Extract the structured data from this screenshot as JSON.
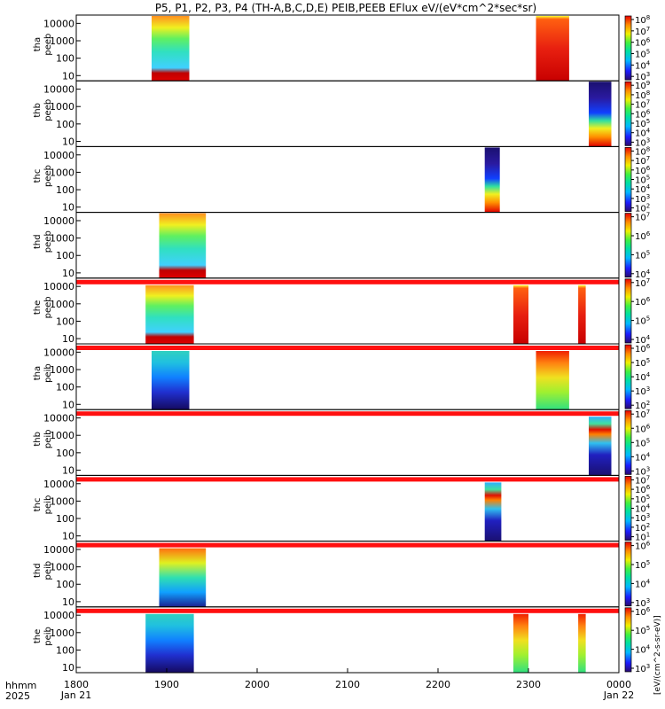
{
  "chart_data": {
    "type": "heatmap",
    "title": "P5, P1, P2, P3, P4 (TH-A,B,C,D,E) PEIB,PEEB EFlux eV/(eV*cm^2*sec*sr)",
    "xlabel": "hhmm",
    "xlabel_year": "2025",
    "x_range": [
      "1800",
      "0000"
    ],
    "x_ticks": [
      {
        "label": "1800",
        "sublabel": "Jan 21",
        "t": 0
      },
      {
        "label": "1900",
        "sublabel": "",
        "t": 60
      },
      {
        "label": "2000",
        "sublabel": "",
        "t": 120
      },
      {
        "label": "2100",
        "sublabel": "",
        "t": 180
      },
      {
        "label": "2200",
        "sublabel": "",
        "t": 240
      },
      {
        "label": "2300",
        "sublabel": "",
        "t": 300
      },
      {
        "label": "0000",
        "sublabel": "Jan 22",
        "t": 360
      }
    ],
    "y_scale": "log",
    "y_ticks": [
      "10000",
      "1000",
      "100",
      "10"
    ],
    "y_tick_values": [
      10000,
      1000,
      100,
      10
    ],
    "ylim": [
      5,
      30000
    ],
    "colorbar_label": "[eV/(cm^2-s-sr-eV)]",
    "colorbar_scale": "log",
    "panels": [
      {
        "probe": "tha",
        "species": "peeb",
        "label1": "tha",
        "label2": "peeb",
        "cbar_ticks": [
          "10^8",
          "10^7",
          "10^6",
          "10^5",
          "10^4",
          "10^3"
        ],
        "cbar_exp": [
          8,
          3
        ],
        "blocks": [
          {
            "t0": 50,
            "t1": 75,
            "style": "electron_mix"
          },
          {
            "t0": 305,
            "t1": 327,
            "style": "electron_hot"
          }
        ],
        "fill_top": false
      },
      {
        "probe": "thb",
        "species": "peeb",
        "label1": "thb",
        "label2": "peeb",
        "cbar_ticks": [
          "10^9",
          "10^8",
          "10^7",
          "10^6",
          "10^5",
          "10^4",
          "10^3"
        ],
        "cbar_exp": [
          9,
          3
        ],
        "blocks": [
          {
            "t0": 340,
            "t1": 355,
            "style": "electron_cold"
          }
        ],
        "fill_top": false
      },
      {
        "probe": "thc",
        "species": "peeb",
        "label1": "thc",
        "label2": "peeb",
        "cbar_ticks": [
          "10^8",
          "10^7",
          "10^6",
          "10^5",
          "10^4",
          "10^3",
          "10^2"
        ],
        "cbar_exp": [
          8,
          2
        ],
        "blocks": [
          {
            "t0": 271,
            "t1": 281,
            "style": "electron_cold"
          }
        ],
        "fill_top": false
      },
      {
        "probe": "thd",
        "species": "peeb",
        "label1": "thd",
        "label2": "peeb",
        "cbar_ticks": [
          "10^7",
          "10^6",
          "10^5",
          "10^4"
        ],
        "cbar_exp": [
          7,
          4
        ],
        "blocks": [
          {
            "t0": 55,
            "t1": 86,
            "style": "electron_mix"
          }
        ],
        "fill_top": false
      },
      {
        "probe": "the",
        "species": "peeb",
        "label1": "the",
        "label2": "peeb",
        "cbar_ticks": [
          "10^7",
          "10^6",
          "10^5",
          "10^4"
        ],
        "cbar_exp": [
          7,
          4
        ],
        "blocks": [
          {
            "t0": 46,
            "t1": 78,
            "style": "electron_mix"
          },
          {
            "t0": 290,
            "t1": 300,
            "style": "electron_hot"
          },
          {
            "t0": 333,
            "t1": 338,
            "style": "electron_hot"
          }
        ],
        "fill_top": true
      },
      {
        "probe": "tha",
        "species": "peib",
        "label1": "tha",
        "label2": "peib",
        "cbar_ticks": [
          "10^6",
          "10^5",
          "10^4",
          "10^3",
          "10^2"
        ],
        "cbar_exp": [
          6,
          2
        ],
        "blocks": [
          {
            "t0": 50,
            "t1": 75,
            "style": "ion_cold"
          },
          {
            "t0": 305,
            "t1": 327,
            "style": "ion_hot"
          }
        ],
        "fill_top": true
      },
      {
        "probe": "thb",
        "species": "peib",
        "label1": "thb",
        "label2": "peib",
        "cbar_ticks": [
          "10^7",
          "10^6",
          "10^5",
          "10^4",
          "10^3"
        ],
        "cbar_exp": [
          7,
          3
        ],
        "blocks": [
          {
            "t0": 340,
            "t1": 355,
            "style": "ion_band"
          }
        ],
        "fill_top": true
      },
      {
        "probe": "thc",
        "species": "peib",
        "label1": "thc",
        "label2": "peib",
        "cbar_ticks": [
          "10^7",
          "10^6",
          "10^5",
          "10^4",
          "10^3",
          "10^2",
          "10^1"
        ],
        "cbar_exp": [
          7,
          1
        ],
        "blocks": [
          {
            "t0": 271,
            "t1": 282,
            "style": "ion_band"
          }
        ],
        "fill_top": true
      },
      {
        "probe": "thd",
        "species": "peib",
        "label1": "thd",
        "label2": "peib",
        "cbar_ticks": [
          "10^6",
          "10^5",
          "10^4",
          "10^3"
        ],
        "cbar_exp": [
          6,
          3
        ],
        "blocks": [
          {
            "t0": 55,
            "t1": 86,
            "style": "ion_warm"
          }
        ],
        "fill_top": true
      },
      {
        "probe": "the",
        "species": "peib",
        "label1": "the",
        "label2": "peib",
        "cbar_ticks": [
          "10^6",
          "10^5",
          "10^4",
          "10^3"
        ],
        "cbar_exp": [
          6,
          3
        ],
        "blocks": [
          {
            "t0": 46,
            "t1": 78,
            "style": "ion_cold"
          },
          {
            "t0": 290,
            "t1": 300,
            "style": "ion_hot"
          },
          {
            "t0": 333,
            "t1": 338,
            "style": "ion_hot"
          }
        ],
        "fill_top": true
      }
    ]
  }
}
